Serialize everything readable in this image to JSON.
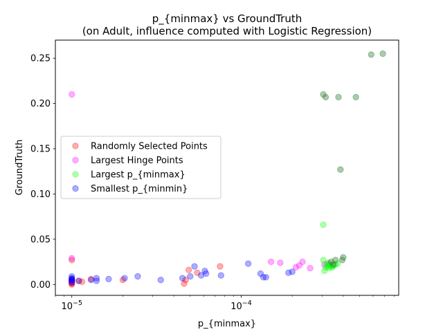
{
  "chart_data": {
    "type": "scatter",
    "title": "p_{minmax} vs GroundTruth",
    "subtitle": "(on Adult, influence computed with Logistic Regression)",
    "xlabel": "p_{minmax}",
    "ylabel": "GroundTruth",
    "xscale": "log",
    "xlim": [
      8e-06,
      0.00085
    ],
    "ylim": [
      -0.012,
      0.27
    ],
    "xticks": [
      {
        "value": 1e-05,
        "base": "10",
        "exp": "−5"
      },
      {
        "value": 0.0001,
        "base": "10",
        "exp": "−4"
      }
    ],
    "yticks": [
      "0.00",
      "0.05",
      "0.10",
      "0.15",
      "0.20",
      "0.25"
    ],
    "grid": false,
    "legend_position": "center-left",
    "series": [
      {
        "name": "Randomly Selected Points",
        "color": "#ff0000",
        "points": [
          [
            1e-05,
            0.001
          ],
          [
            1e-05,
            0.003
          ],
          [
            1e-05,
            0.005
          ],
          [
            1e-05,
            0.002
          ],
          [
            1e-05,
            0.0
          ],
          [
            1e-05,
            0.027
          ],
          [
            1e-05,
            0.004
          ],
          [
            1.1e-05,
            0.004
          ],
          [
            1.15e-05,
            0.003
          ],
          [
            1.3e-05,
            0.006
          ],
          [
            2e-05,
            0.005
          ],
          [
            4.6e-05,
            0.001
          ],
          [
            4.7e-05,
            0.005
          ],
          [
            4.9e-05,
            0.016
          ],
          [
            5.5e-05,
            0.013
          ],
          [
            7.5e-05,
            0.02
          ]
        ]
      },
      {
        "name": "Largest Hinge Points",
        "color": "#ff00ff",
        "points": [
          [
            1e-05,
            0.21
          ],
          [
            1e-05,
            0.029
          ],
          [
            1e-05,
            0.006
          ],
          [
            1e-05,
            0.004
          ],
          [
            0.00015,
            0.025
          ],
          [
            0.00017,
            0.024
          ],
          [
            0.00021,
            0.019
          ],
          [
            0.00022,
            0.021
          ],
          [
            0.00023,
            0.025
          ],
          [
            0.000255,
            0.018
          ],
          [
            0.00031,
            0.022
          ],
          [
            0.00033,
            0.023
          ]
        ]
      },
      {
        "name": "Largest p_{minmax}",
        "color": "#00ff00",
        "points": [
          [
            0.000305,
            0.066
          ],
          [
            0.000305,
            0.027
          ],
          [
            0.00031,
            0.015
          ],
          [
            0.000315,
            0.019
          ],
          [
            0.00032,
            0.022
          ],
          [
            0.000325,
            0.02
          ],
          [
            0.00033,
            0.018
          ],
          [
            0.000335,
            0.022
          ],
          [
            0.00034,
            0.02
          ],
          [
            0.00035,
            0.021
          ],
          [
            0.00036,
            0.022
          ],
          [
            0.00037,
            0.023
          ],
          [
            0.000325,
            0.024
          ],
          [
            0.000345,
            0.019
          ]
        ]
      },
      {
        "name": "Smallest p_{minmin}",
        "color": "#0000ff",
        "points": [
          [
            1e-05,
            0.002
          ],
          [
            1e-05,
            0.004
          ],
          [
            1e-05,
            0.005
          ],
          [
            1e-05,
            0.006
          ],
          [
            1e-05,
            0.007
          ],
          [
            1e-05,
            0.009
          ],
          [
            1.1e-05,
            0.004
          ],
          [
            1.3e-05,
            0.005
          ],
          [
            1.4e-05,
            0.004
          ],
          [
            1.4e-05,
            0.007
          ],
          [
            1.65e-05,
            0.006
          ],
          [
            2.05e-05,
            0.007
          ],
          [
            2.45e-05,
            0.009
          ],
          [
            3.35e-05,
            0.005
          ],
          [
            4.5e-05,
            0.007
          ],
          [
            5e-05,
            0.009
          ],
          [
            5.3e-05,
            0.02
          ],
          [
            5.8e-05,
            0.01
          ],
          [
            6.1e-05,
            0.015
          ],
          [
            6.2e-05,
            0.012
          ],
          [
            7.6e-05,
            0.01
          ],
          [
            0.00011,
            0.023
          ],
          [
            0.00013,
            0.012
          ],
          [
            0.000135,
            0.008
          ],
          [
            0.00014,
            0.008
          ],
          [
            0.00019,
            0.013
          ],
          [
            0.0002,
            0.014
          ]
        ]
      }
    ],
    "overlap_series": {
      "color": "#2e7d32",
      "points": [
        [
          0.000305,
          0.21
        ],
        [
          0.000315,
          0.207
        ],
        [
          0.000375,
          0.207
        ],
        [
          0.000475,
          0.207
        ],
        [
          0.000585,
          0.254
        ],
        [
          0.000685,
          0.255
        ],
        [
          0.000385,
          0.127
        ],
        [
          0.0004,
          0.03
        ],
        [
          0.000395,
          0.027
        ],
        [
          0.00036,
          0.027
        ],
        [
          0.00035,
          0.022
        ],
        [
          0.00034,
          0.025
        ]
      ]
    }
  }
}
